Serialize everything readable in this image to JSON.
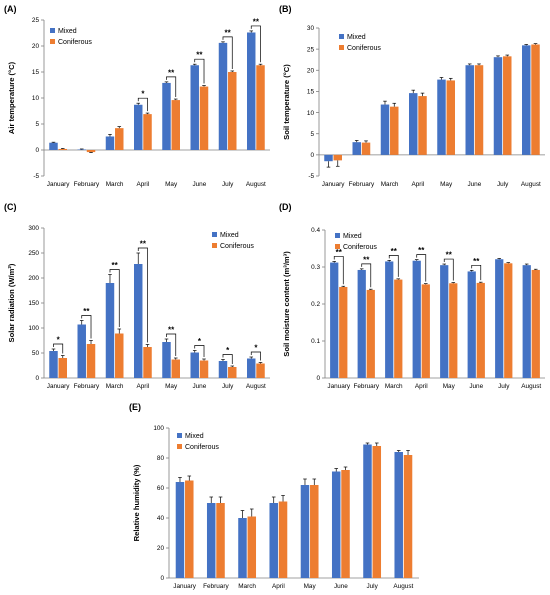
{
  "colors": {
    "mixed": "#4472C4",
    "coniferous": "#ED7D31",
    "axis": "#808080",
    "error": "#000000"
  },
  "chart_data": [
    {
      "panel_label": "(A)",
      "type": "bar",
      "categories": [
        "January",
        "February",
        "March",
        "April",
        "May",
        "June",
        "July",
        "August"
      ],
      "series": [
        {
          "name": "Mixed",
          "values": [
            1.4,
            0.1,
            2.6,
            8.7,
            12.9,
            16.3,
            20.6,
            22.6
          ],
          "errors": [
            0.1,
            0.1,
            0.4,
            0.3,
            0.2,
            0.2,
            0.2,
            0.3
          ]
        },
        {
          "name": "Coniferous",
          "values": [
            0.2,
            -0.4,
            4.2,
            6.9,
            9.6,
            12.2,
            15.0,
            16.3
          ],
          "errors": [
            0.1,
            0.1,
            0.3,
            0.2,
            0.2,
            0.2,
            0.2,
            0.2
          ]
        }
      ],
      "ylabel": "Air temperature (°C)",
      "ylim": [
        -5,
        25
      ],
      "yticks": [
        -5,
        0,
        5,
        10,
        15,
        20,
        25
      ],
      "significance": [
        "",
        "",
        "",
        "*",
        "**",
        "**",
        "**",
        "**"
      ],
      "legend_position": "top-left",
      "grid": false
    },
    {
      "panel_label": "(B)",
      "type": "bar",
      "categories": [
        "January",
        "February",
        "March",
        "April",
        "May",
        "June",
        "July",
        "August"
      ],
      "series": [
        {
          "name": "Mixed",
          "values": [
            -1.5,
            3.0,
            11.9,
            14.6,
            17.8,
            21.2,
            23.1,
            25.9
          ],
          "errors": [
            1.4,
            0.4,
            0.8,
            0.7,
            0.5,
            0.3,
            0.3,
            0.2
          ]
        },
        {
          "name": "Coniferous",
          "values": [
            -1.3,
            2.9,
            11.4,
            13.9,
            17.6,
            21.2,
            23.3,
            26.1
          ],
          "errors": [
            1.4,
            0.4,
            0.8,
            0.7,
            0.5,
            0.3,
            0.3,
            0.2
          ]
        }
      ],
      "ylabel": "Soil temperature (°C)",
      "ylim": [
        -5,
        30
      ],
      "yticks": [
        -5,
        0,
        5,
        10,
        15,
        20,
        25,
        30
      ],
      "significance": [
        "",
        "",
        "",
        "",
        "",
        "",
        "",
        ""
      ],
      "legend_position": "top-left",
      "grid": false
    },
    {
      "panel_label": "(C)",
      "type": "bar",
      "categories": [
        "January",
        "February",
        "March",
        "April",
        "May",
        "June",
        "July",
        "August"
      ],
      "series": [
        {
          "name": "Mixed",
          "values": [
            54,
            107,
            190,
            228,
            72,
            51,
            34,
            39
          ],
          "errors": [
            4,
            8,
            17,
            22,
            6,
            4,
            3,
            3
          ]
        },
        {
          "name": "Coniferous",
          "values": [
            40,
            68,
            89,
            62,
            37,
            35,
            22,
            29
          ],
          "errors": [
            5,
            7,
            9,
            5,
            3,
            3,
            2,
            2
          ]
        }
      ],
      "ylabel": "Solar radiation (W/m²)",
      "ylim": [
        0,
        300
      ],
      "yticks": [
        0,
        50,
        100,
        150,
        200,
        250,
        300
      ],
      "significance": [
        "*",
        "**",
        "**",
        "**",
        "**",
        "*",
        "*",
        "*"
      ],
      "legend_position": "top-right",
      "grid": false
    },
    {
      "panel_label": "(D)",
      "type": "bar",
      "categories": [
        "January",
        "February",
        "March",
        "April",
        "May",
        "June",
        "July",
        "August"
      ],
      "series": [
        {
          "name": "Mixed",
          "values": [
            0.312,
            0.292,
            0.315,
            0.317,
            0.305,
            0.288,
            0.321,
            0.305
          ],
          "errors": [
            0.003,
            0.003,
            0.003,
            0.003,
            0.003,
            0.003,
            0.002,
            0.003
          ]
        },
        {
          "name": "Coniferous",
          "values": [
            0.246,
            0.238,
            0.266,
            0.253,
            0.256,
            0.257,
            0.31,
            0.292
          ],
          "errors": [
            0.002,
            0.002,
            0.002,
            0.002,
            0.002,
            0.002,
            0.002,
            0.002
          ]
        }
      ],
      "ylabel": "Soil moisture content (m³/m³)",
      "ylim": [
        0,
        0.4
      ],
      "yticks": [
        0,
        0.1,
        0.2,
        0.3,
        0.4
      ],
      "significance": [
        "**",
        "**",
        "**",
        "**",
        "**",
        "**",
        "",
        ""
      ],
      "legend_position": "top-left",
      "grid": false
    },
    {
      "panel_label": "(E)",
      "type": "bar",
      "categories": [
        "January",
        "February",
        "March",
        "April",
        "May",
        "June",
        "July",
        "August"
      ],
      "series": [
        {
          "name": "Mixed",
          "values": [
            64,
            50,
            40,
            50,
            62,
            71,
            89,
            84
          ],
          "errors": [
            3,
            4,
            5,
            4,
            4,
            2,
            1,
            1
          ]
        },
        {
          "name": "Coniferous",
          "values": [
            65,
            50,
            41,
            51,
            62,
            72,
            88,
            82
          ],
          "errors": [
            3,
            4,
            5,
            4,
            4,
            2,
            2,
            3
          ]
        }
      ],
      "ylabel": "Relative humidity (%)",
      "ylim": [
        0,
        100
      ],
      "yticks": [
        0,
        20,
        40,
        60,
        80,
        100
      ],
      "significance": [
        "",
        "",
        "",
        "",
        "",
        "",
        "",
        ""
      ],
      "legend_position": "top-left",
      "grid": false
    }
  ]
}
